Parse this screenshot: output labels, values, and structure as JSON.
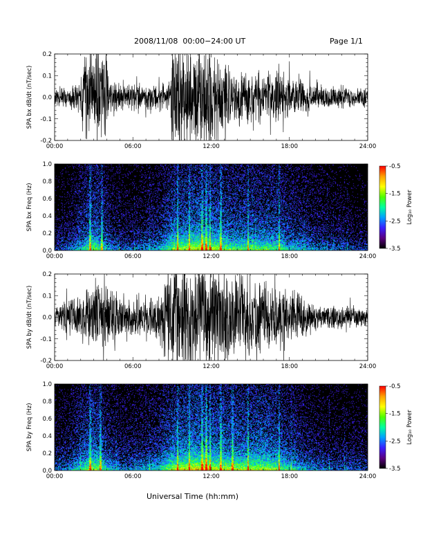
{
  "header": {
    "title": "2008/11/08  00:00−24:00 UT",
    "page": "Page 1/1"
  },
  "x_axis_title": "Universal Time (hh:mm)",
  "chart_data": [
    {
      "type": "line",
      "ylabel": "SPA bx dB/dt (nT/sec)",
      "xlim": [
        "00:00",
        "24:00"
      ],
      "ylim": [
        -0.2,
        0.2
      ],
      "x_tick_labels": [
        "00:00",
        "06:00",
        "12:00",
        "18:00",
        "24:00"
      ],
      "y_tick_labels": [
        "-0.2",
        "-0.1",
        "0.0",
        "0.1",
        "0.2"
      ],
      "color": "#000000",
      "activity_profile": {
        "hours": [
          0,
          1,
          2,
          2.2,
          3,
          4,
          4.2,
          5,
          6,
          7,
          8,
          8.9,
          9,
          10,
          11,
          12,
          13,
          14,
          15,
          16,
          17,
          18,
          19,
          20,
          21,
          22,
          23,
          24
        ],
        "amplitude": [
          0.05,
          0.06,
          0.09,
          0.25,
          0.25,
          0.25,
          0.09,
          0.07,
          0.07,
          0.07,
          0.08,
          0.09,
          0.3,
          0.28,
          0.28,
          0.26,
          0.17,
          0.14,
          0.13,
          0.14,
          0.14,
          0.12,
          0.1,
          0.06,
          0.06,
          0.06,
          0.05,
          0.05
        ]
      }
    },
    {
      "type": "heatmap",
      "ylabel": "SPA bx Freq (Hz)",
      "xlim": [
        "00:00",
        "24:00"
      ],
      "ylim": [
        0.0,
        1.0
      ],
      "x_tick_labels": [
        "00:00",
        "06:00",
        "12:00",
        "18:00",
        "24:00"
      ],
      "y_tick_labels": [
        "0.0",
        "0.2",
        "0.4",
        "0.6",
        "0.8",
        "1.0"
      ],
      "colorbar": {
        "label": "Log₁₀ Power",
        "range": [
          -3.5,
          -0.5
        ],
        "tick_labels": [
          "-0.5",
          "-1.5",
          "-2.5",
          "-3.5"
        ],
        "colors": [
          "#000000",
          "#5a0080",
          "#3a20ff",
          "#00a0ff",
          "#00ffa0",
          "#50ff00",
          "#ffff00",
          "#ffa000",
          "#ff0000"
        ]
      },
      "band_hours": [
        2.7,
        3.6,
        11.3,
        11.6,
        11.9,
        14.8,
        10.3,
        9.4,
        12.7,
        17.2
      ],
      "activity_profile": {
        "hours": [
          0,
          1,
          2,
          3,
          4,
          5,
          6,
          7,
          8,
          9,
          10,
          11,
          12,
          13,
          14,
          15,
          16,
          17,
          18,
          19,
          20,
          21,
          22,
          23,
          24
        ],
        "level": [
          0.2,
          0.25,
          0.4,
          0.55,
          0.35,
          0.25,
          0.25,
          0.3,
          0.35,
          0.55,
          0.6,
          0.65,
          0.6,
          0.55,
          0.5,
          0.5,
          0.5,
          0.5,
          0.4,
          0.35,
          0.3,
          0.25,
          0.25,
          0.2,
          0.2
        ]
      }
    },
    {
      "type": "line",
      "ylabel": "SPA by dB/dt (nT/sec)",
      "xlim": [
        "00:00",
        "24:00"
      ],
      "ylim": [
        -0.2,
        0.2
      ],
      "x_tick_labels": [
        "00:00",
        "06:00",
        "12:00",
        "18:00",
        "24:00"
      ],
      "y_tick_labels": [
        "-0.2",
        "-0.1",
        "0.0",
        "0.1",
        "0.2"
      ],
      "color": "#000000",
      "activity_profile": {
        "hours": [
          0,
          1,
          2,
          3,
          4,
          5,
          6,
          7,
          8,
          9,
          10,
          11,
          12,
          13,
          14,
          15,
          16,
          17,
          18,
          19,
          20,
          21,
          22,
          23,
          24
        ],
        "amplitude": [
          0.06,
          0.09,
          0.12,
          0.18,
          0.16,
          0.12,
          0.1,
          0.09,
          0.12,
          0.3,
          0.28,
          0.3,
          0.28,
          0.25,
          0.22,
          0.22,
          0.2,
          0.2,
          0.15,
          0.1,
          0.07,
          0.07,
          0.06,
          0.06,
          0.05
        ]
      }
    },
    {
      "type": "heatmap",
      "ylabel": "SPA by Freq (Hz)",
      "xlim": [
        "00:00",
        "24:00"
      ],
      "ylim": [
        0.0,
        1.0
      ],
      "x_tick_labels": [
        "00:00",
        "06:00",
        "12:00",
        "18:00",
        "24:00"
      ],
      "y_tick_labels": [
        "0.0",
        "0.2",
        "0.4",
        "0.6",
        "0.8",
        "1.0"
      ],
      "colorbar": {
        "label": "Log₁₀ Power",
        "range": [
          -3.5,
          -0.5
        ],
        "tick_labels": [
          "-0.5",
          "-1.5",
          "-2.5",
          "-3.5"
        ],
        "colors": [
          "#000000",
          "#5a0080",
          "#3a20ff",
          "#00a0ff",
          "#00ffa0",
          "#50ff00",
          "#ffff00",
          "#ffa000",
          "#ff0000"
        ]
      },
      "band_hours": [
        2.7,
        3.5,
        11.3,
        11.6,
        11.9,
        14.8,
        10.3,
        9.4,
        12.7,
        17.2,
        13.6
      ],
      "activity_profile": {
        "hours": [
          0,
          1,
          2,
          3,
          4,
          5,
          6,
          7,
          8,
          9,
          10,
          11,
          12,
          13,
          14,
          15,
          16,
          17,
          18,
          19,
          20,
          21,
          22,
          23,
          24
        ],
        "level": [
          0.25,
          0.3,
          0.45,
          0.6,
          0.4,
          0.3,
          0.3,
          0.35,
          0.4,
          0.6,
          0.65,
          0.7,
          0.65,
          0.6,
          0.6,
          0.6,
          0.6,
          0.55,
          0.45,
          0.35,
          0.3,
          0.25,
          0.25,
          0.25,
          0.2
        ]
      }
    }
  ]
}
